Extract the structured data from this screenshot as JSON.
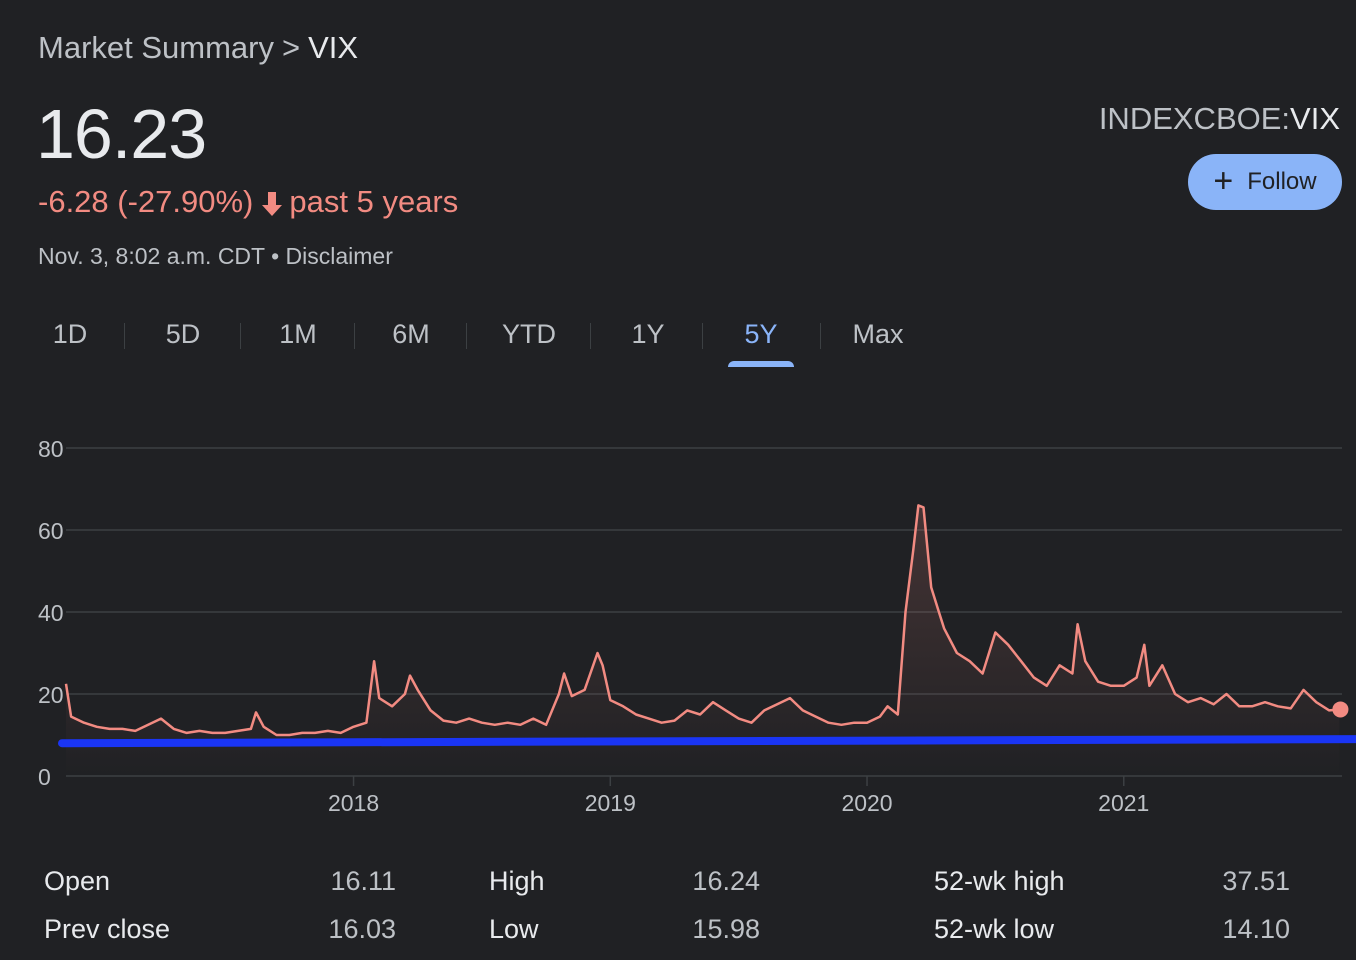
{
  "breadcrumb": {
    "parent": "Market Summary",
    "separator": ">",
    "current": "VIX"
  },
  "quote": {
    "price": "16.23",
    "change": "-6.28 (-27.90%)",
    "period": "past 5 years",
    "timestamp": "Nov. 3, 8:02 a.m. CDT",
    "bullet": "•",
    "disclaimer": "Disclaimer",
    "exchange": "INDEXCBOE:",
    "symbol": "VIX"
  },
  "follow": {
    "label": "Follow",
    "icon": "plus-icon"
  },
  "tabs": [
    {
      "label": "1D",
      "active": false
    },
    {
      "label": "5D",
      "active": false
    },
    {
      "label": "1M",
      "active": false
    },
    {
      "label": "6M",
      "active": false
    },
    {
      "label": "YTD",
      "active": false
    },
    {
      "label": "1Y",
      "active": false
    },
    {
      "label": "5Y",
      "active": true
    },
    {
      "label": "Max",
      "active": false
    }
  ],
  "colors": {
    "line": "#f28b82",
    "baseline": "#1a35f5",
    "accent": "#8ab4f8",
    "grid": "#3c4043",
    "background": "#202124"
  },
  "chart_data": {
    "type": "line",
    "ylim": [
      0,
      80
    ],
    "yticks": [
      0,
      20,
      40,
      60,
      80
    ],
    "xlim": [
      2016.88,
      2021.85
    ],
    "xticks": [
      {
        "value": 2018.0,
        "label": "2018"
      },
      {
        "value": 2019.0,
        "label": "2019"
      },
      {
        "value": 2020.0,
        "label": "2020"
      },
      {
        "value": 2021.0,
        "label": "2021"
      }
    ],
    "grid": true,
    "series": [
      {
        "x": [
          2016.88,
          2016.9,
          2016.95,
          2017.0,
          2017.05,
          2017.1,
          2017.15,
          2017.2,
          2017.25,
          2017.3,
          2017.35,
          2017.4,
          2017.45,
          2017.5,
          2017.55,
          2017.6,
          2017.62,
          2017.65,
          2017.7,
          2017.75,
          2017.8,
          2017.85,
          2017.9,
          2017.95,
          2018.0,
          2018.05,
          2018.08,
          2018.1,
          2018.15,
          2018.2,
          2018.22,
          2018.25,
          2018.3,
          2018.35,
          2018.4,
          2018.45,
          2018.5,
          2018.55,
          2018.6,
          2018.65,
          2018.7,
          2018.75,
          2018.8,
          2018.82,
          2018.85,
          2018.9,
          2018.95,
          2018.97,
          2019.0,
          2019.05,
          2019.1,
          2019.15,
          2019.2,
          2019.25,
          2019.3,
          2019.35,
          2019.4,
          2019.45,
          2019.5,
          2019.55,
          2019.6,
          2019.65,
          2019.7,
          2019.75,
          2019.8,
          2019.85,
          2019.9,
          2019.95,
          2020.0,
          2020.05,
          2020.08,
          2020.12,
          2020.15,
          2020.18,
          2020.2,
          2020.22,
          2020.25,
          2020.28,
          2020.3,
          2020.35,
          2020.4,
          2020.45,
          2020.5,
          2020.55,
          2020.6,
          2020.65,
          2020.7,
          2020.75,
          2020.8,
          2020.82,
          2020.85,
          2020.9,
          2020.95,
          2021.0,
          2021.05,
          2021.08,
          2021.1,
          2021.15,
          2021.2,
          2021.25,
          2021.3,
          2021.35,
          2021.4,
          2021.45,
          2021.5,
          2021.55,
          2021.6,
          2021.65,
          2021.7,
          2021.75,
          2021.8,
          2021.84
        ],
        "values": [
          22.5,
          14.5,
          13,
          12,
          11.5,
          11.5,
          11,
          12.5,
          14,
          11.5,
          10.5,
          11,
          10.5,
          10.5,
          11,
          11.5,
          15.5,
          12,
          10,
          10,
          10.5,
          10.5,
          11,
          10.5,
          12,
          13,
          28,
          19,
          17,
          20,
          24.5,
          21,
          16,
          13.5,
          13,
          14,
          13,
          12.5,
          13,
          12.5,
          14,
          12.5,
          20,
          25,
          19.5,
          21,
          30,
          27,
          18.5,
          17,
          15,
          14,
          13,
          13.5,
          16,
          15,
          18,
          16,
          14,
          13,
          16,
          17.5,
          19,
          16,
          14.5,
          13,
          12.5,
          13,
          13,
          14.5,
          17,
          15,
          40,
          55,
          66,
          65.5,
          46,
          40,
          36,
          30,
          28,
          25,
          35,
          32,
          28,
          24,
          22,
          27,
          25,
          37,
          28,
          23,
          22,
          22,
          24,
          32,
          22,
          27,
          20,
          18,
          19,
          17.5,
          20,
          17,
          17,
          18,
          17,
          16.5,
          21,
          18,
          16,
          16.23
        ]
      }
    ],
    "baseline": {
      "x": [
        2016.88,
        2021.88
      ],
      "values": [
        8,
        9
      ]
    }
  },
  "stats": [
    {
      "label": "Open",
      "value": "16.11"
    },
    {
      "label": "High",
      "value": "16.24"
    },
    {
      "label": "52-wk high",
      "value": "37.51"
    },
    {
      "label": "Prev close",
      "value": "16.03"
    },
    {
      "label": "Low",
      "value": "15.98"
    },
    {
      "label": "52-wk low",
      "value": "14.10"
    }
  ]
}
